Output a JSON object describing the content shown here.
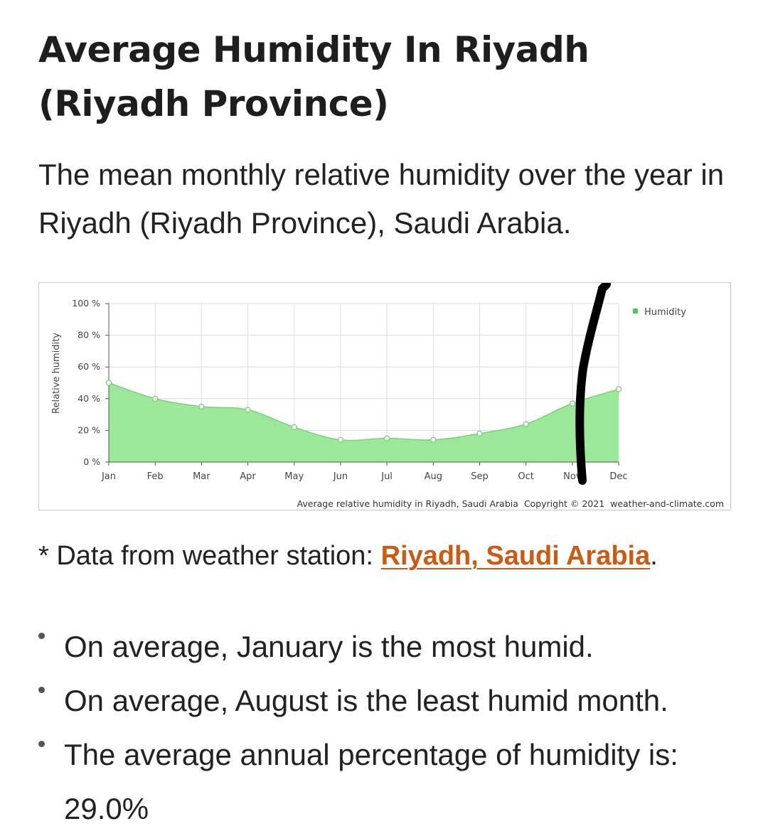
{
  "page": {
    "title": "Average Humidity In Riyadh (Riyadh Province)",
    "subtitle": "The mean monthly relative humidity over the year in Riyadh (Riyadh Province), Saudi Arabia."
  },
  "chart_data": {
    "type": "area",
    "ylabel": "Relative humidity",
    "xlabel": "",
    "caption": "Average relative humidity in Riyadh, Saudi Arabia  Copyright © 2021  weather-and-climate.com",
    "legend_position": "top-right",
    "grid": true,
    "categories": [
      "Jan",
      "Feb",
      "Mar",
      "Apr",
      "May",
      "Jun",
      "Jul",
      "Aug",
      "Sep",
      "Oct",
      "Nov",
      "Dec"
    ],
    "y_ticks": [
      "0 %",
      "20 %",
      "40 %",
      "60 %",
      "80 %",
      "100 %"
    ],
    "ylim": [
      0,
      100
    ],
    "series": [
      {
        "name": "Humidity",
        "values": [
          50,
          40,
          35,
          33,
          22,
          14,
          15,
          14,
          18,
          24,
          37,
          46
        ]
      }
    ],
    "colors": {
      "fill": "#9be89b",
      "line": "#7ccf7c",
      "legend": "#4cc94c",
      "grid": "#dcdcdc",
      "annotation": "#000000"
    }
  },
  "source": {
    "prefix": "* Data from weather station: ",
    "link_text": "Riyadh, Saudi Arabia",
    "suffix": ".",
    "link_color": "#cc5a12"
  },
  "facts": [
    "On average, January is the most humid.",
    "On average, August is the least humid month.",
    "The average annual percentage of humidity is: 29.0%"
  ]
}
